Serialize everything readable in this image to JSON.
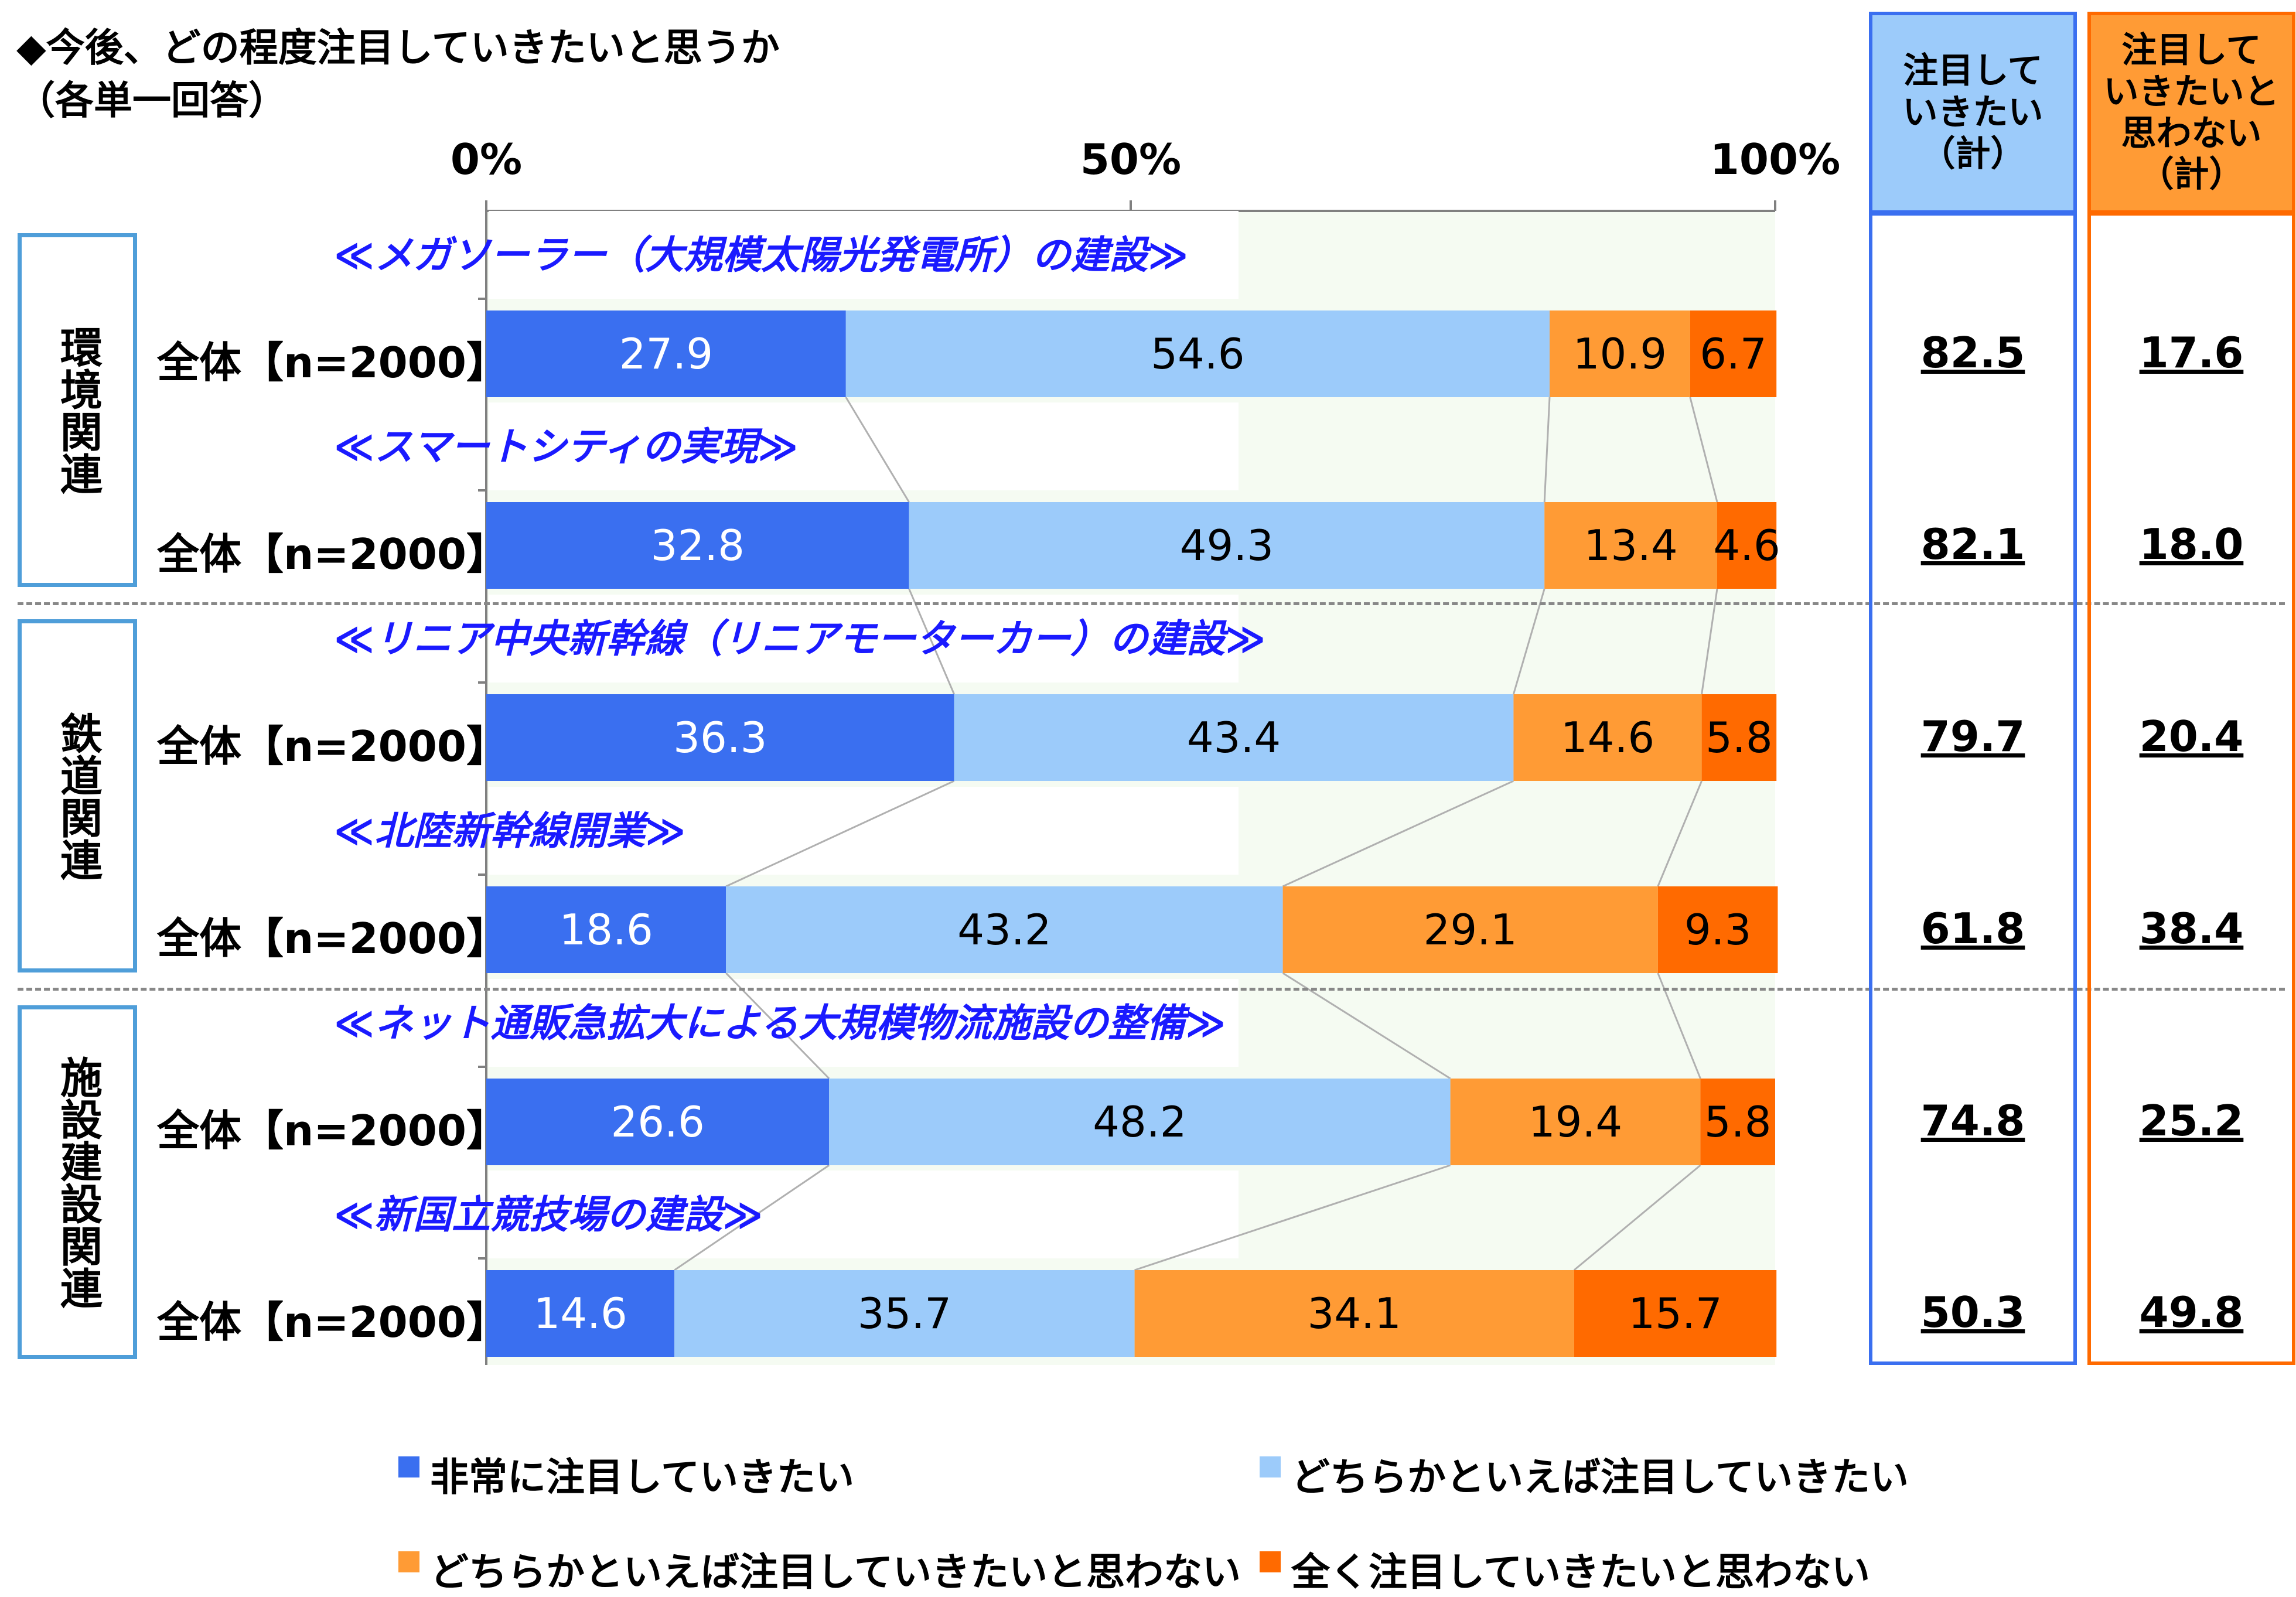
{
  "title": "◆今後、どの程度注目していきたいと思うか",
  "subtitle": "（各単一回答）",
  "chart_data": {
    "type": "bar",
    "orientation": "horizontal",
    "stacked": true,
    "percent": true,
    "xlim": [
      0,
      100
    ],
    "x_tick_labels": [
      "0%",
      "50%",
      "100%"
    ],
    "legend_position": "bottom",
    "series": [
      {
        "name": "非常に注目していきたい",
        "color": "#3a6ff0",
        "values": [
          27.9,
          32.8,
          36.3,
          18.6,
          26.6,
          14.6
        ]
      },
      {
        "name": "どちらかといえば注目していきたい",
        "color": "#9ccbfa",
        "values": [
          54.6,
          49.3,
          43.4,
          43.2,
          48.2,
          35.7
        ]
      },
      {
        "name": "どちらかといえば注目していきたいと思わない",
        "color": "#ff9b35",
        "values": [
          10.9,
          13.4,
          14.6,
          29.1,
          19.4,
          34.1
        ]
      },
      {
        "name": "全く注目していきたいと思わない",
        "color": "#ff6a00",
        "values": [
          6.7,
          4.6,
          5.8,
          9.3,
          5.8,
          15.7
        ]
      }
    ],
    "groups": [
      {
        "label": "環境関連",
        "items": [
          0,
          1
        ]
      },
      {
        "label": "鉄道関連",
        "items": [
          2,
          3
        ]
      },
      {
        "label": "施設建設関連",
        "items": [
          4,
          5
        ]
      }
    ],
    "items": [
      {
        "title": "≪メガソーラー（大規模太陽光発電所）の建設≫",
        "n_label": "全体【n=2000】",
        "sum_attention": "82.5",
        "sum_no_attention": "17.6"
      },
      {
        "title": "≪スマートシティの実現≫",
        "n_label": "全体【n=2000】",
        "sum_attention": "82.1",
        "sum_no_attention": "18.0"
      },
      {
        "title": "≪リニア中央新幹線（リニアモーターカー）の建設≫",
        "n_label": "全体【n=2000】",
        "sum_attention": "79.7",
        "sum_no_attention": "20.4"
      },
      {
        "title": "≪北陸新幹線開業≫",
        "n_label": "全体【n=2000】",
        "sum_attention": "61.8",
        "sum_no_attention": "38.4"
      },
      {
        "title": "≪ネット通販急拡大による大規模物流施設の整備≫",
        "n_label": "全体【n=2000】",
        "sum_attention": "74.8",
        "sum_no_attention": "25.2"
      },
      {
        "title": "≪新国立競技場の建設≫",
        "n_label": "全体【n=2000】",
        "sum_attention": "50.3",
        "sum_no_attention": "49.8"
      }
    ],
    "summary_headers": {
      "attention": "注目して\nいきたい\n（計）",
      "no_attention": "注目して\nいきたいと\n思わない\n（計）"
    },
    "summary_colors": {
      "attention": "#9ccbfa",
      "attention_border": "#3a6ff0",
      "no_attention": "#ff9b35",
      "no_attention_border": "#ff6a00"
    },
    "segment_label_colors": [
      "#ffffff",
      "#000000",
      "#000000",
      "#000000"
    ]
  }
}
